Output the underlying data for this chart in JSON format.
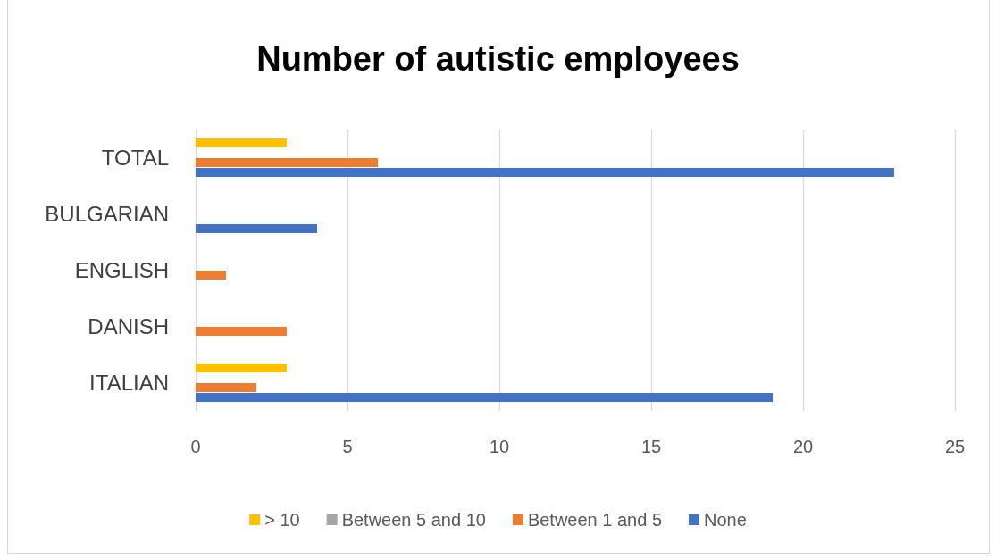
{
  "chart_data": {
    "type": "bar",
    "orientation": "horizontal",
    "title": "Number of autistic employees",
    "categories": [
      "TOTAL",
      "BULGARIAN",
      "ENGLISH",
      "DANISH",
      "ITALIAN"
    ],
    "series": [
      {
        "name": "> 10",
        "color": "#ffc000",
        "values": [
          3,
          0,
          0,
          0,
          3
        ]
      },
      {
        "name": "Between 5 and 10",
        "color": "#a5a5a5",
        "values": [
          0,
          0,
          0,
          0,
          0
        ]
      },
      {
        "name": "Between 1 and 5",
        "color": "#ed7d31",
        "values": [
          6,
          0,
          1,
          3,
          2
        ]
      },
      {
        "name": "None",
        "color": "#4472c4",
        "values": [
          23,
          4,
          0,
          0,
          19
        ]
      }
    ],
    "xlim": [
      0,
      25
    ],
    "xticks": [
      0,
      5,
      10,
      15,
      20,
      25
    ],
    "grid": "x",
    "legend": "bottom"
  }
}
